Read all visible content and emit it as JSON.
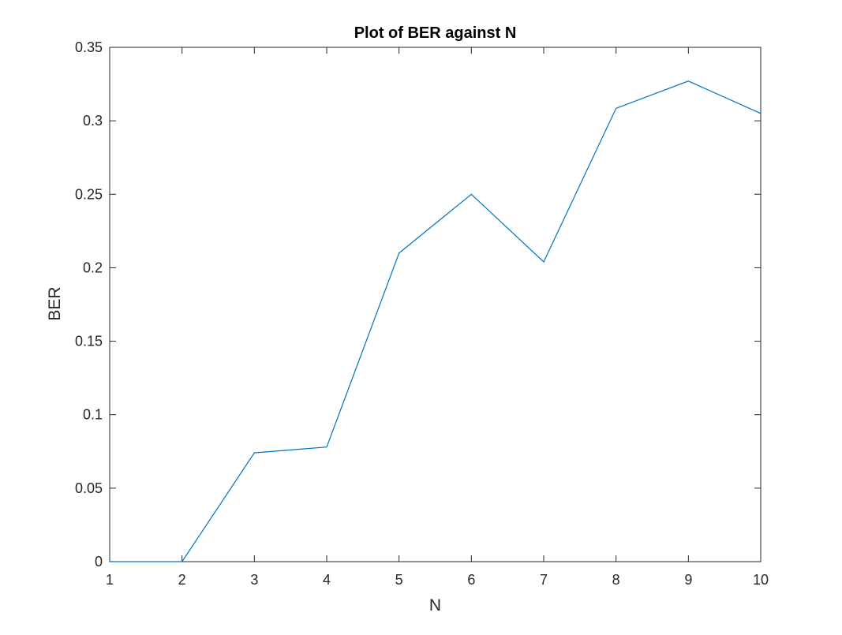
{
  "chart_data": {
    "type": "line",
    "title": "Plot of BER against N",
    "xlabel": "N",
    "ylabel": "BER",
    "xlim": [
      1,
      10
    ],
    "ylim": [
      0,
      0.35
    ],
    "xticks": [
      1,
      2,
      3,
      4,
      5,
      6,
      7,
      8,
      9,
      10
    ],
    "xtick_labels": [
      "1",
      "2",
      "3",
      "4",
      "5",
      "6",
      "7",
      "8",
      "9",
      "10"
    ],
    "yticks": [
      0,
      0.05,
      0.1,
      0.15,
      0.2,
      0.25,
      0.3,
      0.35
    ],
    "ytick_labels": [
      "0",
      "0.05",
      "0.1",
      "0.15",
      "0.2",
      "0.25",
      "0.3",
      "0.35"
    ],
    "grid": false,
    "series": [
      {
        "name": "BER",
        "color": "#0072BD",
        "x": [
          1,
          2,
          3,
          4,
          5,
          6,
          7,
          8,
          9,
          10
        ],
        "y": [
          0,
          0,
          0.074,
          0.078,
          0.21,
          0.25,
          0.204,
          0.3085,
          0.327,
          0.305
        ]
      }
    ]
  }
}
